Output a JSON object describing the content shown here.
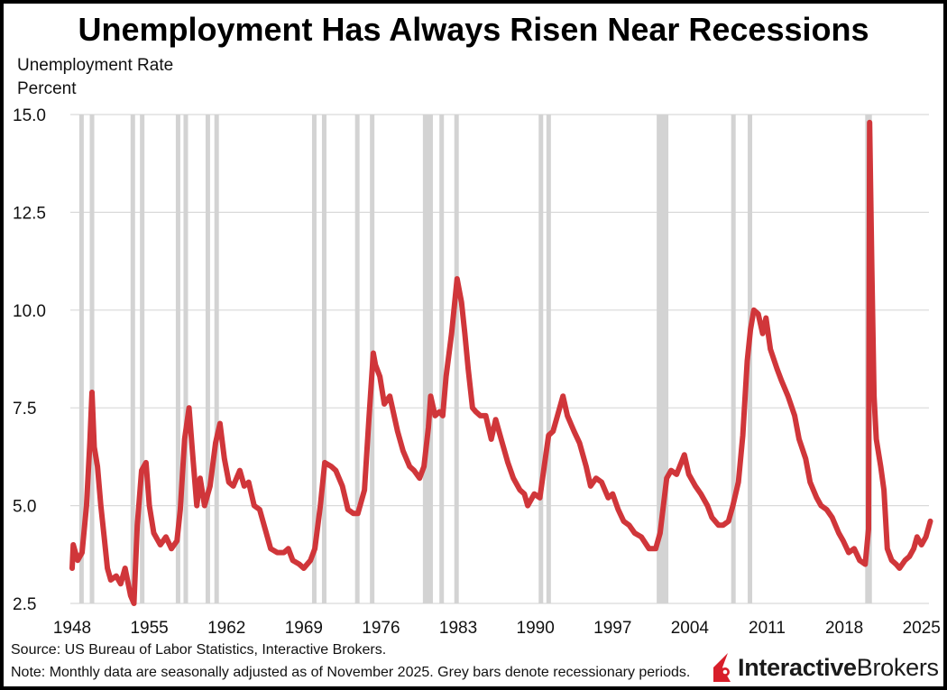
{
  "chart_data": {
    "type": "line",
    "title": "Unemployment Has Always Risen Near Recessions",
    "ylabel": "Unemployment Rate",
    "yunit": "Percent",
    "xlabel": "",
    "ylim": [
      2.5,
      15.0
    ],
    "yticks": [
      "2.5",
      "5.0",
      "7.5",
      "10.0",
      "12.5",
      "15.0"
    ],
    "xlim": [
      1948,
      2025
    ],
    "xticks": [
      "1948",
      "1955",
      "1962",
      "1969",
      "1976",
      "1983",
      "1990",
      "1997",
      "2004",
      "2011",
      "2018",
      "2025"
    ],
    "grid": "horizontal",
    "line_color": "#d0363a",
    "recession_color": "#d3d3d3",
    "recessions": [
      [
        1948.85,
        1949.8
      ],
      [
        1953.5,
        1954.35
      ],
      [
        1957.6,
        1958.3
      ],
      [
        1960.3,
        1961.1
      ],
      [
        1969.95,
        1970.85
      ],
      [
        1973.85,
        1975.2
      ],
      [
        1980.0,
        1980.5
      ],
      [
        1981.5,
        1982.85
      ],
      [
        1990.5,
        1991.2
      ],
      [
        2001.2,
        2001.85
      ],
      [
        2007.95,
        2009.45
      ],
      [
        2020.1,
        2020.3
      ]
    ],
    "series": [
      {
        "points": [
          [
            1948.0,
            3.4
          ],
          [
            1948.1,
            4.0
          ],
          [
            1948.5,
            3.6
          ],
          [
            1948.9,
            3.8
          ],
          [
            1949.3,
            5.0
          ],
          [
            1949.6,
            6.6
          ],
          [
            1949.8,
            7.9
          ],
          [
            1950.0,
            6.5
          ],
          [
            1950.3,
            6.0
          ],
          [
            1950.6,
            5.0
          ],
          [
            1950.9,
            4.2
          ],
          [
            1951.2,
            3.4
          ],
          [
            1951.5,
            3.1
          ],
          [
            1952.0,
            3.2
          ],
          [
            1952.4,
            3.0
          ],
          [
            1952.8,
            3.4
          ],
          [
            1953.3,
            2.7
          ],
          [
            1953.6,
            2.5
          ],
          [
            1953.9,
            4.5
          ],
          [
            1954.3,
            5.9
          ],
          [
            1954.7,
            6.1
          ],
          [
            1955.0,
            5.0
          ],
          [
            1955.4,
            4.3
          ],
          [
            1956.0,
            4.0
          ],
          [
            1956.5,
            4.2
          ],
          [
            1957.0,
            3.9
          ],
          [
            1957.5,
            4.1
          ],
          [
            1957.8,
            4.9
          ],
          [
            1958.2,
            6.7
          ],
          [
            1958.6,
            7.5
          ],
          [
            1958.9,
            6.4
          ],
          [
            1959.3,
            5.0
          ],
          [
            1959.6,
            5.7
          ],
          [
            1960.0,
            5.0
          ],
          [
            1960.5,
            5.5
          ],
          [
            1961.0,
            6.6
          ],
          [
            1961.4,
            7.1
          ],
          [
            1961.8,
            6.2
          ],
          [
            1962.2,
            5.6
          ],
          [
            1962.6,
            5.5
          ],
          [
            1963.2,
            5.9
          ],
          [
            1963.6,
            5.5
          ],
          [
            1964.0,
            5.6
          ],
          [
            1964.5,
            5.0
          ],
          [
            1965.0,
            4.9
          ],
          [
            1965.5,
            4.4
          ],
          [
            1966.0,
            3.9
          ],
          [
            1966.6,
            3.8
          ],
          [
            1967.2,
            3.8
          ],
          [
            1967.6,
            3.9
          ],
          [
            1968.0,
            3.6
          ],
          [
            1968.6,
            3.5
          ],
          [
            1969.0,
            3.4
          ],
          [
            1969.6,
            3.6
          ],
          [
            1970.0,
            3.9
          ],
          [
            1970.5,
            5.0
          ],
          [
            1970.9,
            6.1
          ],
          [
            1971.5,
            6.0
          ],
          [
            1971.9,
            5.9
          ],
          [
            1972.5,
            5.5
          ],
          [
            1973.0,
            4.9
          ],
          [
            1973.5,
            4.8
          ],
          [
            1973.9,
            4.8
          ],
          [
            1974.5,
            5.4
          ],
          [
            1974.9,
            7.2
          ],
          [
            1975.3,
            8.9
          ],
          [
            1975.5,
            8.6
          ],
          [
            1975.9,
            8.3
          ],
          [
            1976.3,
            7.6
          ],
          [
            1976.8,
            7.8
          ],
          [
            1977.5,
            6.9
          ],
          [
            1978.0,
            6.4
          ],
          [
            1978.6,
            6.0
          ],
          [
            1979.0,
            5.9
          ],
          [
            1979.5,
            5.7
          ],
          [
            1979.9,
            6.0
          ],
          [
            1980.3,
            7.0
          ],
          [
            1980.5,
            7.8
          ],
          [
            1980.9,
            7.3
          ],
          [
            1981.3,
            7.4
          ],
          [
            1981.6,
            7.3
          ],
          [
            1981.9,
            8.3
          ],
          [
            1982.4,
            9.4
          ],
          [
            1982.9,
            10.8
          ],
          [
            1983.3,
            10.2
          ],
          [
            1983.6,
            9.4
          ],
          [
            1983.9,
            8.5
          ],
          [
            1984.3,
            7.5
          ],
          [
            1984.6,
            7.4
          ],
          [
            1985.0,
            7.3
          ],
          [
            1985.5,
            7.3
          ],
          [
            1986.0,
            6.7
          ],
          [
            1986.4,
            7.2
          ],
          [
            1986.9,
            6.7
          ],
          [
            1987.5,
            6.1
          ],
          [
            1988.0,
            5.7
          ],
          [
            1988.6,
            5.4
          ],
          [
            1989.0,
            5.3
          ],
          [
            1989.3,
            5.0
          ],
          [
            1989.9,
            5.3
          ],
          [
            1990.4,
            5.2
          ],
          [
            1990.8,
            6.0
          ],
          [
            1991.2,
            6.8
          ],
          [
            1991.6,
            6.9
          ],
          [
            1992.0,
            7.3
          ],
          [
            1992.5,
            7.8
          ],
          [
            1992.9,
            7.3
          ],
          [
            1993.5,
            6.9
          ],
          [
            1994.0,
            6.6
          ],
          [
            1994.6,
            6.0
          ],
          [
            1995.0,
            5.5
          ],
          [
            1995.5,
            5.7
          ],
          [
            1996.0,
            5.6
          ],
          [
            1996.6,
            5.2
          ],
          [
            1997.0,
            5.3
          ],
          [
            1997.5,
            4.9
          ],
          [
            1998.0,
            4.6
          ],
          [
            1998.5,
            4.5
          ],
          [
            1999.0,
            4.3
          ],
          [
            1999.6,
            4.2
          ],
          [
            2000.3,
            3.9
          ],
          [
            2000.9,
            3.9
          ],
          [
            2001.3,
            4.3
          ],
          [
            2001.9,
            5.7
          ],
          [
            2002.3,
            5.9
          ],
          [
            2002.8,
            5.8
          ],
          [
            2003.5,
            6.3
          ],
          [
            2003.9,
            5.8
          ],
          [
            2004.5,
            5.5
          ],
          [
            2005.0,
            5.3
          ],
          [
            2005.6,
            5.0
          ],
          [
            2006.0,
            4.7
          ],
          [
            2006.6,
            4.5
          ],
          [
            2007.0,
            4.5
          ],
          [
            2007.5,
            4.6
          ],
          [
            2007.9,
            5.0
          ],
          [
            2008.4,
            5.6
          ],
          [
            2008.8,
            6.8
          ],
          [
            2009.2,
            8.7
          ],
          [
            2009.5,
            9.5
          ],
          [
            2009.8,
            10.0
          ],
          [
            2010.2,
            9.9
          ],
          [
            2010.6,
            9.4
          ],
          [
            2010.9,
            9.8
          ],
          [
            2011.3,
            9.0
          ],
          [
            2011.9,
            8.5
          ],
          [
            2012.3,
            8.2
          ],
          [
            2012.9,
            7.8
          ],
          [
            2013.5,
            7.3
          ],
          [
            2013.9,
            6.7
          ],
          [
            2014.5,
            6.2
          ],
          [
            2014.9,
            5.6
          ],
          [
            2015.5,
            5.2
          ],
          [
            2015.9,
            5.0
          ],
          [
            2016.4,
            4.9
          ],
          [
            2016.9,
            4.7
          ],
          [
            2017.5,
            4.3
          ],
          [
            2017.9,
            4.1
          ],
          [
            2018.4,
            3.8
          ],
          [
            2018.9,
            3.9
          ],
          [
            2019.4,
            3.6
          ],
          [
            2019.9,
            3.5
          ],
          [
            2020.2,
            4.4
          ],
          [
            2020.3,
            14.8
          ],
          [
            2020.5,
            11.0
          ],
          [
            2020.7,
            7.8
          ],
          [
            2020.9,
            6.7
          ],
          [
            2021.3,
            6.0
          ],
          [
            2021.6,
            5.4
          ],
          [
            2021.9,
            3.9
          ],
          [
            2022.3,
            3.6
          ],
          [
            2022.7,
            3.5
          ],
          [
            2023.0,
            3.4
          ],
          [
            2023.5,
            3.6
          ],
          [
            2023.9,
            3.7
          ],
          [
            2024.3,
            3.9
          ],
          [
            2024.6,
            4.2
          ],
          [
            2025.0,
            4.0
          ],
          [
            2025.4,
            4.2
          ],
          [
            2025.8,
            4.6
          ]
        ]
      }
    ]
  },
  "footer": {
    "source": "Source: US Bureau of Labor Statistics, Interactive Brokers.",
    "note": "Note: Monthly data are seasonally adjusted as of November 2025. Grey bars denote recessionary periods."
  },
  "logo": {
    "bold": "Interactive",
    "regular": "Brokers",
    "color": "#d81e2a"
  }
}
